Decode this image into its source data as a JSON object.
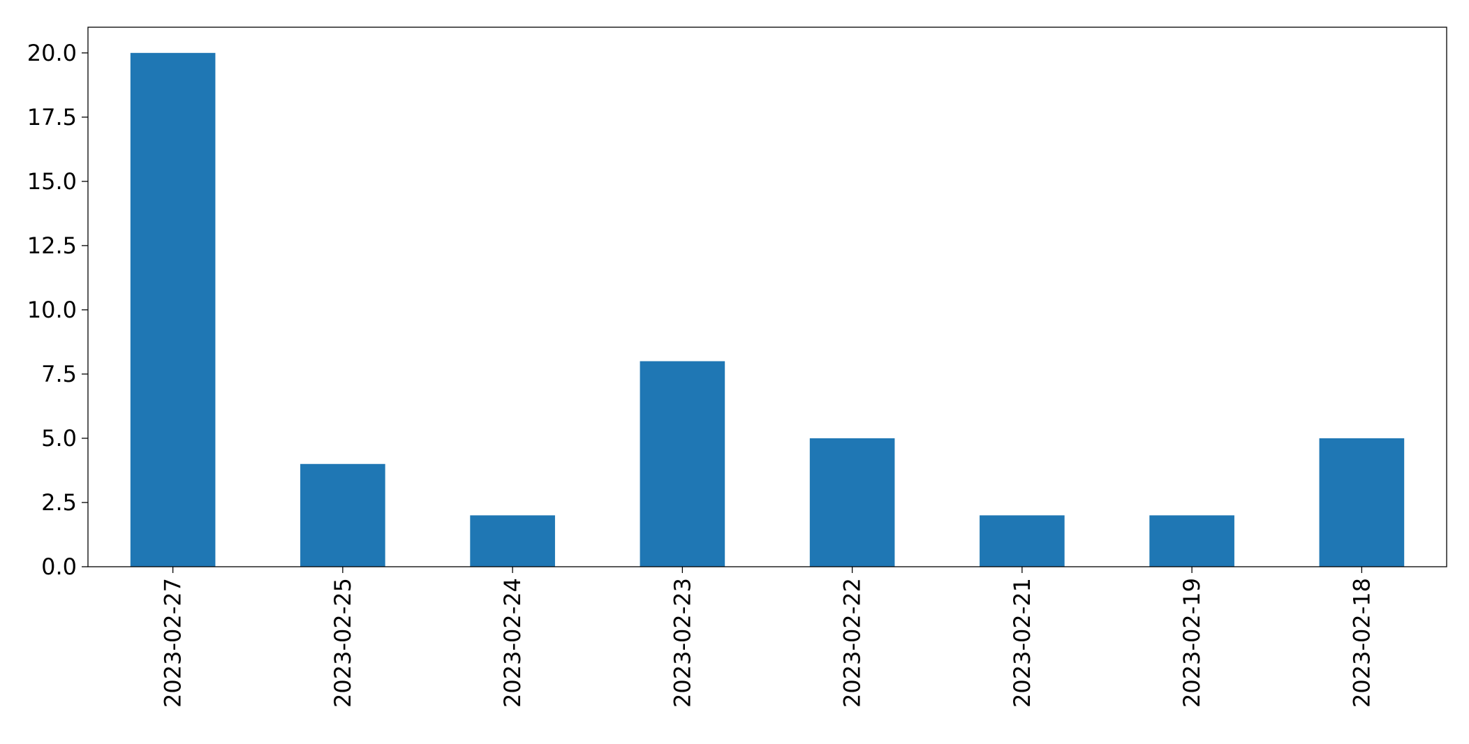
{
  "chart_data": {
    "type": "bar",
    "categories": [
      "2023-02-27",
      "2023-02-25",
      "2023-02-24",
      "2023-02-23",
      "2023-02-22",
      "2023-02-21",
      "2023-02-19",
      "2023-02-18"
    ],
    "values": [
      20,
      4,
      2,
      8,
      5,
      2,
      2,
      5
    ],
    "title": "",
    "xlabel": "",
    "ylabel": "",
    "ylim": [
      0,
      21
    ],
    "yticks": [
      "0.0",
      "2.5",
      "5.0",
      "7.5",
      "10.0",
      "12.5",
      "15.0",
      "17.5",
      "20.0"
    ],
    "grid": false,
    "legend": "none",
    "colors": {
      "bar": "#1f77b4",
      "axis": "#000000"
    }
  }
}
